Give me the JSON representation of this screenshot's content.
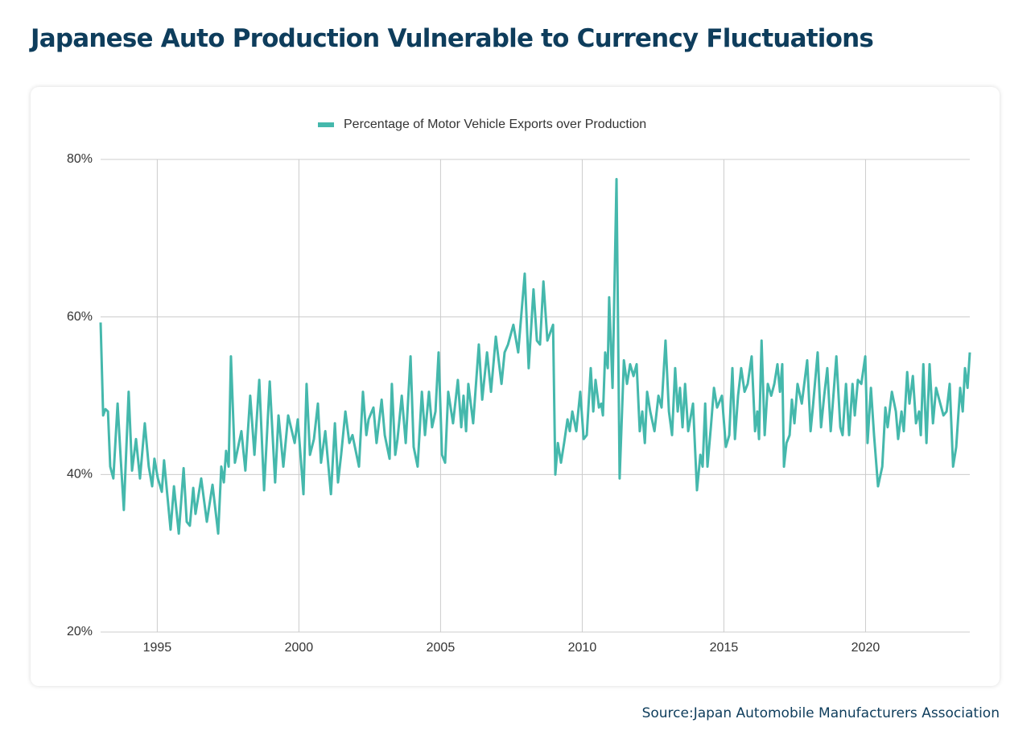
{
  "chart_data": {
    "type": "line",
    "title": "Japanese Auto Production Vulnerable to Currency Fluctuations",
    "source": "Source:Japan Automobile Manufacturers Association",
    "xlim": [
      1993,
      2023.68
    ],
    "xticks": [
      1995,
      2000,
      2005,
      2010,
      2015,
      2020
    ],
    "ylim": [
      20,
      80
    ],
    "yticks": [
      {
        "value": 20,
        "label": "20%"
      },
      {
        "value": 40,
        "label": "40%"
      },
      {
        "value": 60,
        "label": "60%"
      },
      {
        "value": 80,
        "label": "80%"
      }
    ],
    "grid": true,
    "legend": "top",
    "x": [
      1993.0,
      1993.09,
      1993.17,
      1993.26,
      1993.34,
      1993.45,
      1993.6,
      1993.71,
      1993.82,
      1993.99,
      1994.11,
      1994.25,
      1994.39,
      1994.56,
      1994.7,
      1994.82,
      1994.9,
      1995.02,
      1995.16,
      1995.24,
      1995.47,
      1995.59,
      1995.76,
      1995.93,
      1996.04,
      1996.15,
      1996.27,
      1996.35,
      1996.55,
      1996.75,
      1996.95,
      1997.15,
      1997.26,
      1997.35,
      1997.43,
      1997.52,
      1997.6,
      1997.74,
      1997.97,
      1998.11,
      1998.28,
      1998.43,
      1998.6,
      1998.77,
      1998.97,
      1999.16,
      1999.28,
      1999.45,
      1999.62,
      1999.85,
      1999.96,
      2000.16,
      2000.27,
      2000.39,
      2000.53,
      2000.67,
      2000.78,
      2000.93,
      2001.13,
      2001.27,
      2001.38,
      2001.49,
      2001.64,
      2001.78,
      2001.89,
      2002.12,
      2002.26,
      2002.38,
      2002.46,
      2002.63,
      2002.74,
      2002.92,
      2003.03,
      2003.2,
      2003.28,
      2003.4,
      2003.48,
      2003.63,
      2003.77,
      2003.94,
      2004.05,
      2004.19,
      2004.34,
      2004.45,
      2004.59,
      2004.7,
      2004.82,
      2004.93,
      2005.05,
      2005.16,
      2005.27,
      2005.44,
      2005.61,
      2005.73,
      2005.81,
      2005.9,
      2005.98,
      2006.15,
      2006.35,
      2006.47,
      2006.64,
      2006.78,
      2006.95,
      2007.15,
      2007.26,
      2007.38,
      2007.57,
      2007.74,
      2007.97,
      2008.11,
      2008.28,
      2008.4,
      2008.51,
      2008.63,
      2008.77,
      2008.97,
      2009.05,
      2009.14,
      2009.25,
      2009.36,
      2009.48,
      2009.56,
      2009.65,
      2009.79,
      2009.93,
      2010.05,
      2010.16,
      2010.3,
      2010.39,
      2010.47,
      2010.59,
      2010.67,
      2010.73,
      2010.81,
      2010.9,
      2010.95,
      2011.07,
      2011.21,
      2011.32,
      2011.47,
      2011.58,
      2011.69,
      2011.81,
      2011.92,
      2012.03,
      2012.12,
      2012.21,
      2012.29,
      2012.4,
      2012.55,
      2012.69,
      2012.8,
      2012.94,
      2013.06,
      2013.17,
      2013.28,
      2013.37,
      2013.45,
      2013.54,
      2013.63,
      2013.74,
      2013.91,
      2014.05,
      2014.17,
      2014.25,
      2014.34,
      2014.42,
      2014.54,
      2014.65,
      2014.76,
      2014.93,
      2015.07,
      2015.19,
      2015.3,
      2015.39,
      2015.5,
      2015.61,
      2015.73,
      2015.84,
      2015.98,
      2016.1,
      2016.18,
      2016.24,
      2016.33,
      2016.44,
      2016.55,
      2016.67,
      2016.78,
      2016.89,
      2016.98,
      2017.06,
      2017.12,
      2017.21,
      2017.32,
      2017.4,
      2017.49,
      2017.6,
      2017.75,
      2017.94,
      2018.06,
      2018.14,
      2018.31,
      2018.43,
      2018.54,
      2018.65,
      2018.77,
      2018.97,
      2019.11,
      2019.19,
      2019.31,
      2019.42,
      2019.54,
      2019.62,
      2019.73,
      2019.85,
      2019.99,
      2020.07,
      2020.19,
      2020.3,
      2020.44,
      2020.59,
      2020.7,
      2020.78,
      2020.93,
      2021.07,
      2021.15,
      2021.27,
      2021.35,
      2021.47,
      2021.55,
      2021.67,
      2021.78,
      2021.89,
      2021.95,
      2022.04,
      2022.15,
      2022.26,
      2022.38,
      2022.49,
      2022.6,
      2022.75,
      2022.86,
      2022.97,
      2023.09,
      2023.2,
      2023.34,
      2023.43,
      2023.51,
      2023.6,
      2023.68
    ],
    "series": [
      {
        "name": "Percentage of Motor Vehicle Exports over Production",
        "color": "#45b8ac",
        "values": [
          59.3,
          47.5,
          48.3,
          48,
          41,
          39.5,
          49,
          42,
          35.5,
          50.5,
          40.5,
          44.5,
          39.5,
          46.5,
          41,
          38.5,
          42,
          39.5,
          37.8,
          41.8,
          33,
          38.5,
          32.5,
          40.8,
          34,
          33.5,
          38.3,
          35,
          39.5,
          34,
          38.7,
          32.5,
          41,
          39,
          43,
          41,
          55,
          41.5,
          45.5,
          40.5,
          50,
          42.5,
          52,
          38,
          51.8,
          39,
          47.5,
          41,
          47.5,
          44,
          47,
          37.5,
          51.5,
          42.5,
          44.5,
          49,
          41.5,
          45.5,
          37.5,
          46.5,
          39,
          42.5,
          48,
          44,
          45,
          41,
          50.5,
          45,
          47,
          48.5,
          44,
          49.5,
          45,
          42,
          51.5,
          42.5,
          44.5,
          50,
          44,
          55,
          43.5,
          41,
          50.5,
          45,
          50.5,
          46,
          48,
          55.5,
          42.5,
          41.5,
          50.5,
          46.5,
          52,
          46,
          50,
          45.5,
          51.5,
          46.5,
          56.5,
          49.5,
          55.5,
          50.5,
          57.5,
          51.5,
          55.5,
          56.5,
          59,
          55.5,
          65.5,
          53.5,
          63.5,
          57,
          56.5,
          64.5,
          57,
          59,
          40,
          44,
          41.5,
          44,
          47,
          45.5,
          48,
          45.5,
          50.5,
          44.5,
          45,
          53.5,
          48,
          52,
          48.5,
          49,
          47.5,
          55.5,
          53.5,
          62.5,
          51,
          77.5,
          39.5,
          54.5,
          51.5,
          54,
          52.5,
          54,
          45.5,
          48,
          44,
          50.5,
          48,
          45.5,
          50,
          48.5,
          57,
          48,
          45,
          53.5,
          48,
          51,
          46,
          51.5,
          45.5,
          49,
          38,
          42.5,
          41,
          49,
          41,
          46,
          51,
          48.5,
          50,
          43.5,
          45,
          53.5,
          44.5,
          50,
          53.5,
          50.5,
          51.5,
          55,
          45.5,
          48,
          44.5,
          57,
          45,
          51.5,
          50,
          51.5,
          54,
          50.5,
          54,
          41,
          44,
          45,
          49.5,
          46.5,
          51.5,
          49,
          54.5,
          45.5,
          48.5,
          55.5,
          46,
          50,
          53.5,
          45.5,
          55,
          46,
          45,
          51.5,
          45,
          51.5,
          47.5,
          52,
          51.5,
          55,
          44,
          51,
          45,
          38.5,
          41,
          48.5,
          46,
          50.5,
          48,
          44.5,
          48,
          45.5,
          53,
          49,
          52.5,
          46.5,
          48,
          45,
          54,
          44,
          54,
          46.5,
          51,
          49.5,
          47.5,
          48,
          51.5,
          41,
          43.5,
          51,
          48,
          53.5,
          51,
          55.5
        ]
      }
    ]
  }
}
